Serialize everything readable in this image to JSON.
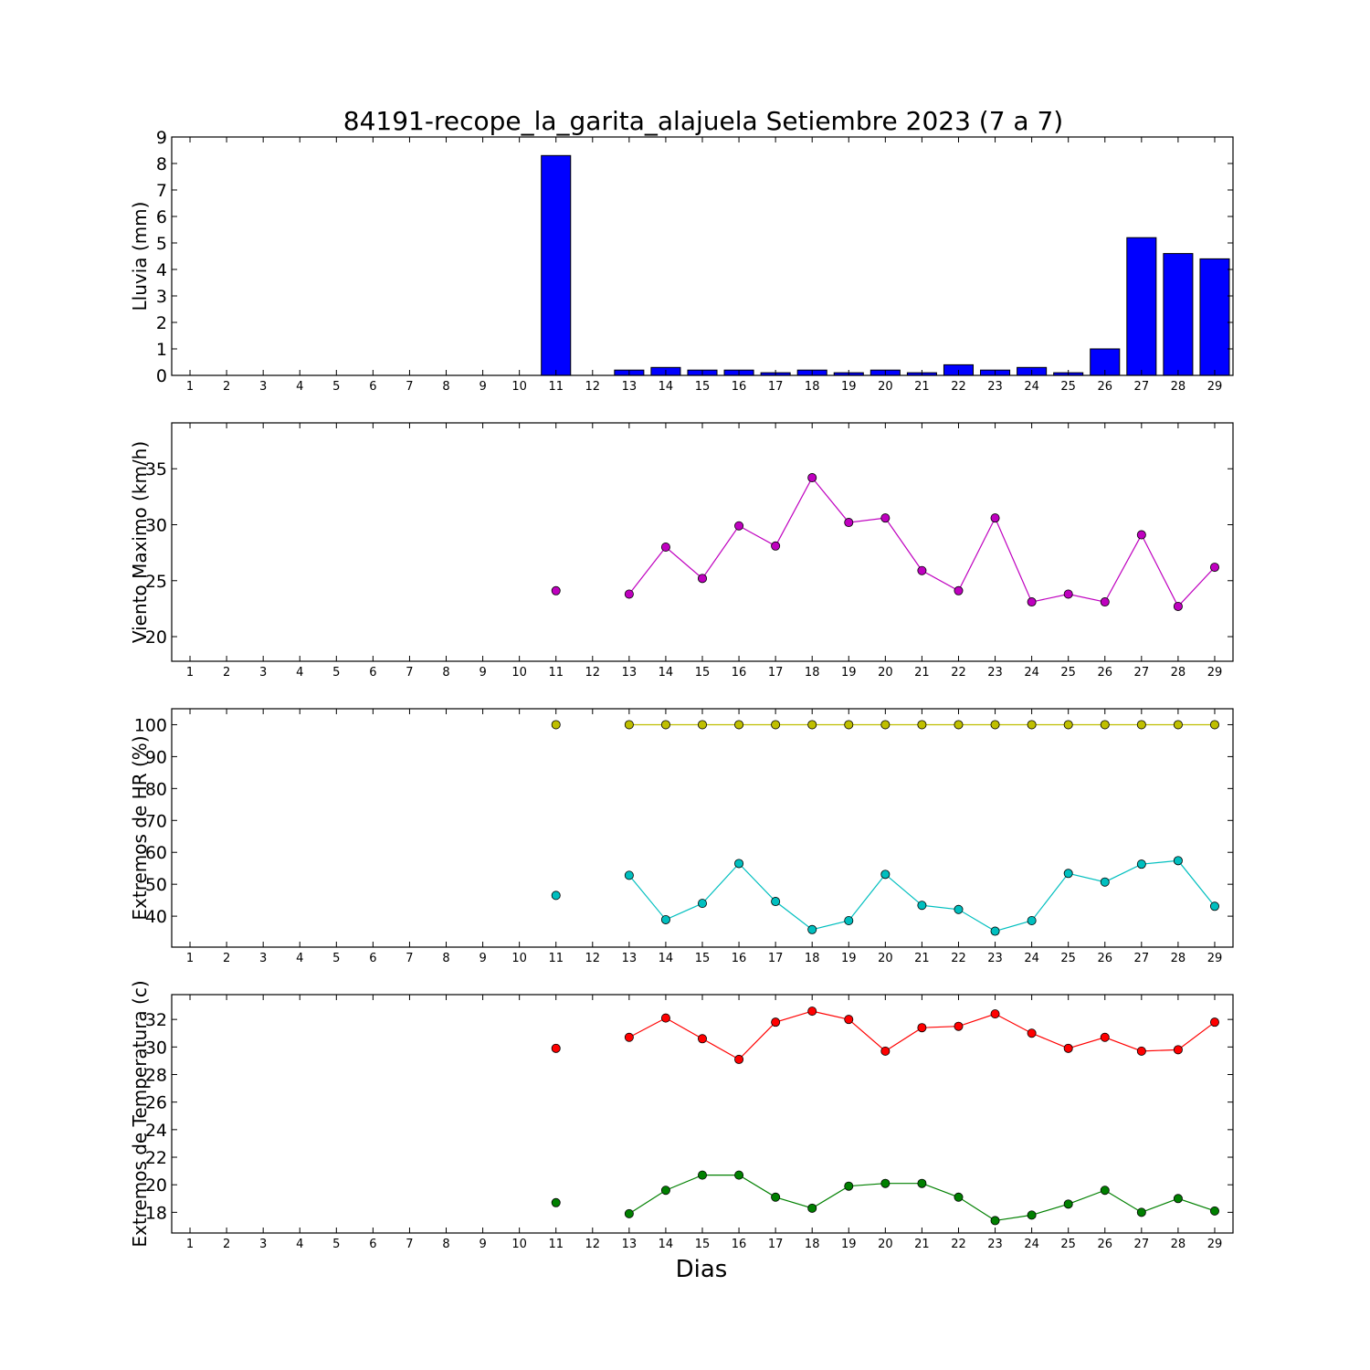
{
  "title": "84191-recope_la_garita_alajuela Setiembre 2023  (7 a 7)",
  "xlabel": "Dias",
  "days": [
    1,
    2,
    3,
    4,
    5,
    6,
    7,
    8,
    9,
    10,
    11,
    12,
    13,
    14,
    15,
    16,
    17,
    18,
    19,
    20,
    21,
    22,
    23,
    24,
    25,
    26,
    27,
    28,
    29
  ],
  "chart_data": [
    {
      "type": "bar",
      "ylabel": "Lluvia (mm)",
      "ylim": [
        0,
        9
      ],
      "yticks": [
        0,
        1,
        2,
        3,
        4,
        5,
        6,
        7,
        8,
        9
      ],
      "series": [
        {
          "color": "#0000ff",
          "values": [
            null,
            null,
            null,
            null,
            null,
            null,
            null,
            null,
            null,
            null,
            8.3,
            null,
            0.2,
            0.3,
            0.2,
            0.2,
            0.1,
            0.2,
            0.1,
            0.2,
            0.1,
            0.4,
            0.2,
            0.3,
            0.1,
            1.0,
            5.2,
            4.6,
            4.4
          ]
        }
      ]
    },
    {
      "type": "line",
      "ylabel": "Viento Maximo (km/h)",
      "ylim": [
        17.8,
        39.1
      ],
      "yticks": [
        20,
        25,
        30,
        35
      ],
      "series": [
        {
          "color": "#bf00bf",
          "values": [
            null,
            null,
            null,
            null,
            null,
            null,
            null,
            null,
            null,
            null,
            24.1,
            null,
            23.8,
            28.0,
            25.2,
            29.9,
            28.1,
            34.2,
            30.2,
            30.6,
            25.9,
            24.1,
            30.6,
            23.1,
            23.8,
            23.1,
            29.1,
            22.7,
            26.2
          ]
        }
      ]
    },
    {
      "type": "line",
      "ylabel": "Extremos de HR (%)",
      "ylim": [
        30.3,
        105
      ],
      "yticks": [
        40,
        50,
        60,
        70,
        80,
        90,
        100
      ],
      "series": [
        {
          "color": "#bfbf00",
          "values": [
            null,
            null,
            null,
            null,
            null,
            null,
            null,
            null,
            null,
            null,
            100,
            null,
            100,
            100,
            100,
            100,
            100,
            100,
            100,
            100,
            100,
            100,
            100,
            100,
            100,
            100,
            100,
            100,
            100
          ]
        },
        {
          "color": "#00bfbf",
          "values": [
            null,
            null,
            null,
            null,
            null,
            null,
            null,
            null,
            null,
            null,
            46.5,
            null,
            52.8,
            38.9,
            44.0,
            56.5,
            44.6,
            35.8,
            38.6,
            53.1,
            43.4,
            42.1,
            35.3,
            38.6,
            53.4,
            50.7,
            56.3,
            57.4,
            43.1
          ]
        }
      ]
    },
    {
      "type": "line",
      "ylabel": "Extremos de Temperatura (c)",
      "ylim": [
        16.5,
        33.8
      ],
      "yticks": [
        18,
        20,
        22,
        24,
        26,
        28,
        30,
        32
      ],
      "series": [
        {
          "color": "#ff0000",
          "values": [
            null,
            null,
            null,
            null,
            null,
            null,
            null,
            null,
            null,
            null,
            29.9,
            null,
            30.7,
            32.1,
            30.6,
            29.1,
            31.8,
            32.6,
            32.0,
            29.7,
            31.4,
            31.5,
            32.4,
            31.0,
            29.9,
            30.7,
            29.7,
            29.8,
            31.8
          ]
        },
        {
          "color": "#008000",
          "values": [
            null,
            null,
            null,
            null,
            null,
            null,
            null,
            null,
            null,
            null,
            18.7,
            null,
            17.9,
            19.6,
            20.7,
            20.7,
            19.1,
            18.3,
            19.9,
            20.1,
            20.1,
            19.1,
            17.4,
            17.8,
            18.6,
            19.6,
            18.0,
            19.0,
            18.1
          ]
        }
      ]
    }
  ]
}
